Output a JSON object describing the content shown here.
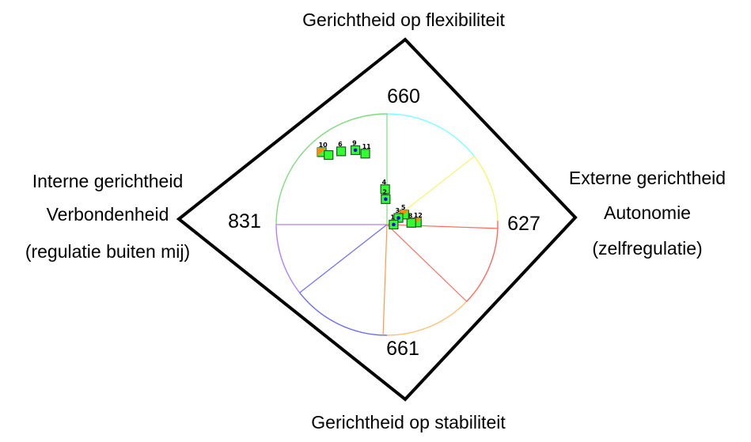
{
  "labels": {
    "top": "Gerichtheid op flexibiliteit",
    "bottom": "Gerichtheid op stabiliteit",
    "left": [
      "Interne gerichtheid",
      "Verbondenheid",
      "(regulatie buiten mij)"
    ],
    "right": [
      "Externe gerichtheid",
      "Autonomie",
      "(zelfregulatie)"
    ]
  },
  "values": {
    "top": "660",
    "right": "627",
    "bottom": "661",
    "left": "831"
  },
  "colors": {
    "sector": [
      "#7fdc7f",
      "#7fffff",
      "#f5f56a",
      "#ff6a5a",
      "#ff9a4a",
      "#ffc07a",
      "#6a6aff",
      "#b07fff"
    ],
    "marker_fill": "#32ff32",
    "marker_orange": "#ff8c00",
    "marker_dot": "#0000ff"
  },
  "points": [
    {
      "label": "10",
      "r": 0.88,
      "a": 132,
      "type": "orange"
    },
    {
      "label": "",
      "r": 0.82,
      "a": 130,
      "type": "square"
    },
    {
      "label": "6",
      "r": 0.78,
      "a": 122,
      "type": "square"
    },
    {
      "label": "9",
      "r": 0.73,
      "a": 113,
      "type": "dot"
    },
    {
      "label": "11",
      "r": 0.67,
      "a": 107,
      "type": "square"
    },
    {
      "label": "12",
      "r": 0.27,
      "a": 4,
      "type": "orange"
    },
    {
      "label": "8",
      "r": 0.22,
      "a": 4,
      "type": "square"
    },
    {
      "label": "5",
      "r": 0.18,
      "a": 30,
      "type": "orange"
    },
    {
      "label": "3",
      "r": 0.12,
      "a": 30,
      "type": "dot"
    },
    {
      "label": "1",
      "r": 0.06,
      "a": 0,
      "type": "dot"
    },
    {
      "label": "4",
      "r": 0.32,
      "a": 93,
      "type": "square"
    },
    {
      "label": "2",
      "r": 0.23,
      "a": 93,
      "type": "dot"
    }
  ]
}
